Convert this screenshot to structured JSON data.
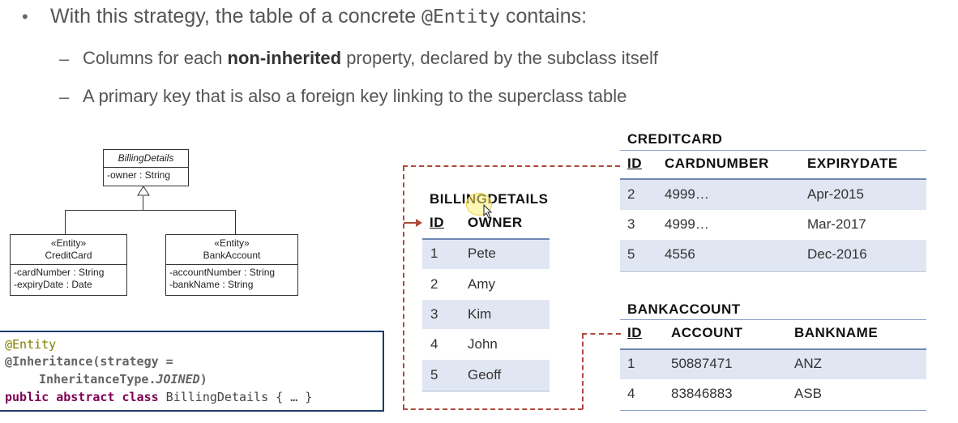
{
  "bullets": {
    "main_prefix": "With this strategy, the table of a concrete ",
    "main_code": "@Entity",
    "main_suffix": " contains:",
    "sub1_prefix": "Columns for each ",
    "sub1_bold": "non-inherited",
    "sub1_suffix": " property, declared by the subclass itself",
    "sub2": "A primary key that is also a foreign key linking to the superclass table",
    "dot": "•",
    "dash": "–"
  },
  "uml": {
    "parent": {
      "name": "BillingDetails",
      "attrs": [
        "-owner : String"
      ]
    },
    "child1": {
      "stereotype": "«Entity»",
      "name": "CreditCard",
      "attrs": [
        "-cardNumber : String",
        "-expiryDate : Date"
      ]
    },
    "child2": {
      "stereotype": "«Entity»",
      "name": "BankAccount",
      "attrs": [
        "-accountNumber : String",
        "-bankName : String"
      ]
    }
  },
  "code": {
    "line1": "@Entity",
    "line2_ann": "@Inheritance",
    "line2_rest": "(strategy =",
    "line3_type": "InheritanceType.",
    "line3_val": "JOINED",
    "line3_end": ")",
    "line4_kw": "public abstract class",
    "line4_rest": " BillingDetails { … }"
  },
  "billing": {
    "title": "BILLINGDETAILS",
    "columns": [
      "ID",
      "OWNER"
    ],
    "rows": [
      [
        "1",
        "Pete"
      ],
      [
        "2",
        "Amy"
      ],
      [
        "3",
        "Kim"
      ],
      [
        "4",
        "John"
      ],
      [
        "5",
        "Geoff"
      ]
    ]
  },
  "creditcard": {
    "title": "CREDITCARD",
    "columns": [
      "ID",
      "CARDNUMBER",
      "EXPIRYDATE"
    ],
    "rows": [
      [
        "2",
        "4999…",
        "Apr-2015"
      ],
      [
        "3",
        "4999…",
        "Mar-2017"
      ],
      [
        "5",
        "4556",
        "Dec-2016"
      ]
    ]
  },
  "bankaccount": {
    "title": "BANKACCOUNT",
    "columns": [
      "ID",
      "ACCOUNT",
      "BANKNAME"
    ],
    "rows": [
      [
        "1",
        "50887471",
        "ANZ"
      ],
      [
        "4",
        "83846883",
        "ASB"
      ]
    ]
  },
  "colors": {
    "row_shade": "#e1e6f3",
    "fk_line": "#b04a3c",
    "code_border": "#1f3b6e"
  }
}
